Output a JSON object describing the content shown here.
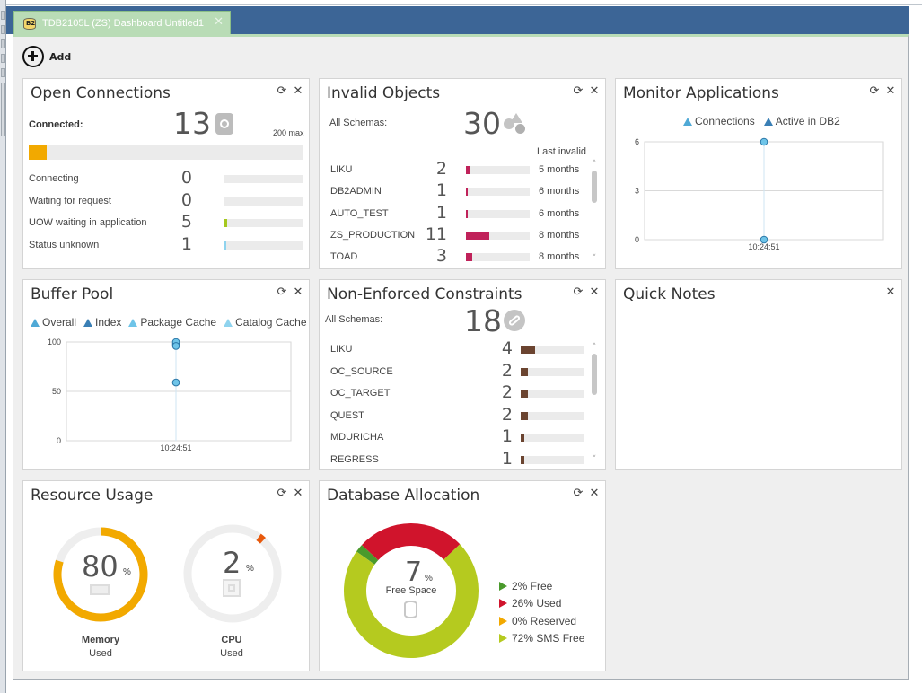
{
  "tab": {
    "title": "TDB2105L (ZS) Dashboard Untitled1",
    "close": "✕"
  },
  "toolbar": {
    "add_label": "Add"
  },
  "open_connections": {
    "title": "Open Connections",
    "connected_label": "Connected:",
    "connected_value": "13",
    "max_label": "200 max",
    "connected_fraction": 0.065,
    "rows": [
      {
        "label": "Connecting",
        "value": "0",
        "fraction": 0.0
      },
      {
        "label": "Waiting for request",
        "value": "0",
        "fraction": 0.0
      },
      {
        "label": "UOW waiting in application",
        "value": "5",
        "fraction": 0.03
      },
      {
        "label": "Status unknown",
        "value": "1",
        "fraction": 0.01
      }
    ]
  },
  "invalid_objects": {
    "title": "Invalid Objects",
    "schemas_label": "All Schemas:",
    "total": "30",
    "col_header": "Last invalid",
    "rows": [
      {
        "label": "LIKU",
        "value": "2",
        "fraction": 0.06,
        "time": "5 months"
      },
      {
        "label": "DB2ADMIN",
        "value": "1",
        "fraction": 0.03,
        "time": "6 months"
      },
      {
        "label": "AUTO_TEST",
        "value": "1",
        "fraction": 0.03,
        "time": "6 months"
      },
      {
        "label": "ZS_PRODUCTION",
        "value": "11",
        "fraction": 0.37,
        "time": "8 months"
      },
      {
        "label": "TOAD",
        "value": "3",
        "fraction": 0.1,
        "time": "8 months"
      }
    ]
  },
  "monitor_applications": {
    "title": "Monitor Applications",
    "legend": [
      "Connections",
      "Active in DB2"
    ],
    "y_ticks": [
      "6",
      "3",
      "0"
    ],
    "x_tick": "10:24:51"
  },
  "buffer_pool": {
    "title": "Buffer Pool",
    "legend": [
      "Overall",
      "Index",
      "Package Cache",
      "Catalog Cache"
    ],
    "y_ticks": [
      "100",
      "50",
      "0"
    ],
    "x_tick": "10:24:51"
  },
  "non_enforced": {
    "title": "Non-Enforced Constraints",
    "schemas_label": "All Schemas:",
    "total": "18",
    "rows": [
      {
        "label": "LIKU",
        "value": "4",
        "fraction": 0.22
      },
      {
        "label": "OC_SOURCE",
        "value": "2",
        "fraction": 0.11
      },
      {
        "label": "OC_TARGET",
        "value": "2",
        "fraction": 0.11
      },
      {
        "label": "QUEST",
        "value": "2",
        "fraction": 0.11
      },
      {
        "label": "MDURICHA",
        "value": "1",
        "fraction": 0.05
      },
      {
        "label": "REGRESS",
        "value": "1",
        "fraction": 0.05
      }
    ]
  },
  "quick_notes": {
    "title": "Quick Notes"
  },
  "resource_usage": {
    "title": "Resource Usage",
    "memory": {
      "value": "80",
      "unit": "%",
      "label": "Memory",
      "sub": "Used",
      "fraction": 0.8
    },
    "cpu": {
      "value": "2",
      "unit": "%",
      "label": "CPU",
      "sub": "Used",
      "fraction": 0.02
    }
  },
  "database_allocation": {
    "title": "Database Allocation",
    "center_value": "7",
    "center_unit": "%",
    "center_label": "Free Space",
    "legend": [
      "2% Free",
      "26% Used",
      "0% Reserved",
      "72% SMS Free"
    ]
  },
  "chart_data": [
    {
      "type": "line",
      "name": "Monitor Applications",
      "x": [
        "10:24:51"
      ],
      "series": [
        {
          "name": "Connections",
          "values": [
            6
          ]
        },
        {
          "name": "Active in DB2",
          "values": [
            0
          ]
        }
      ],
      "ylim": [
        0,
        6
      ],
      "y_ticks": [
        0,
        3,
        6
      ],
      "legend": "top"
    },
    {
      "type": "line",
      "name": "Buffer Pool",
      "x": [
        "10:24:51"
      ],
      "series": [
        {
          "name": "Overall",
          "values": [
            98
          ]
        },
        {
          "name": "Index",
          "values": [
            100
          ]
        },
        {
          "name": "Package Cache",
          "values": [
            96
          ]
        },
        {
          "name": "Catalog Cache",
          "values": [
            59
          ]
        }
      ],
      "ylim": [
        0,
        100
      ],
      "y_ticks": [
        0,
        50,
        100
      ],
      "legend": "top"
    },
    {
      "type": "pie",
      "name": "Database Allocation",
      "categories": [
        "Free",
        "Used",
        "Reserved",
        "SMS Free"
      ],
      "values": [
        2,
        26,
        0,
        72
      ],
      "colors": [
        "#4a9a2c",
        "#d0142c",
        "#f2a900",
        "#b5ca1f"
      ],
      "legend": "right"
    }
  ],
  "colors": {
    "accent_orange": "#f2a900",
    "bar_crimson": "#c0225a",
    "bar_brown": "#6b4430",
    "uow_green": "#a5c81e",
    "chart_point": "#6ec4e8"
  }
}
